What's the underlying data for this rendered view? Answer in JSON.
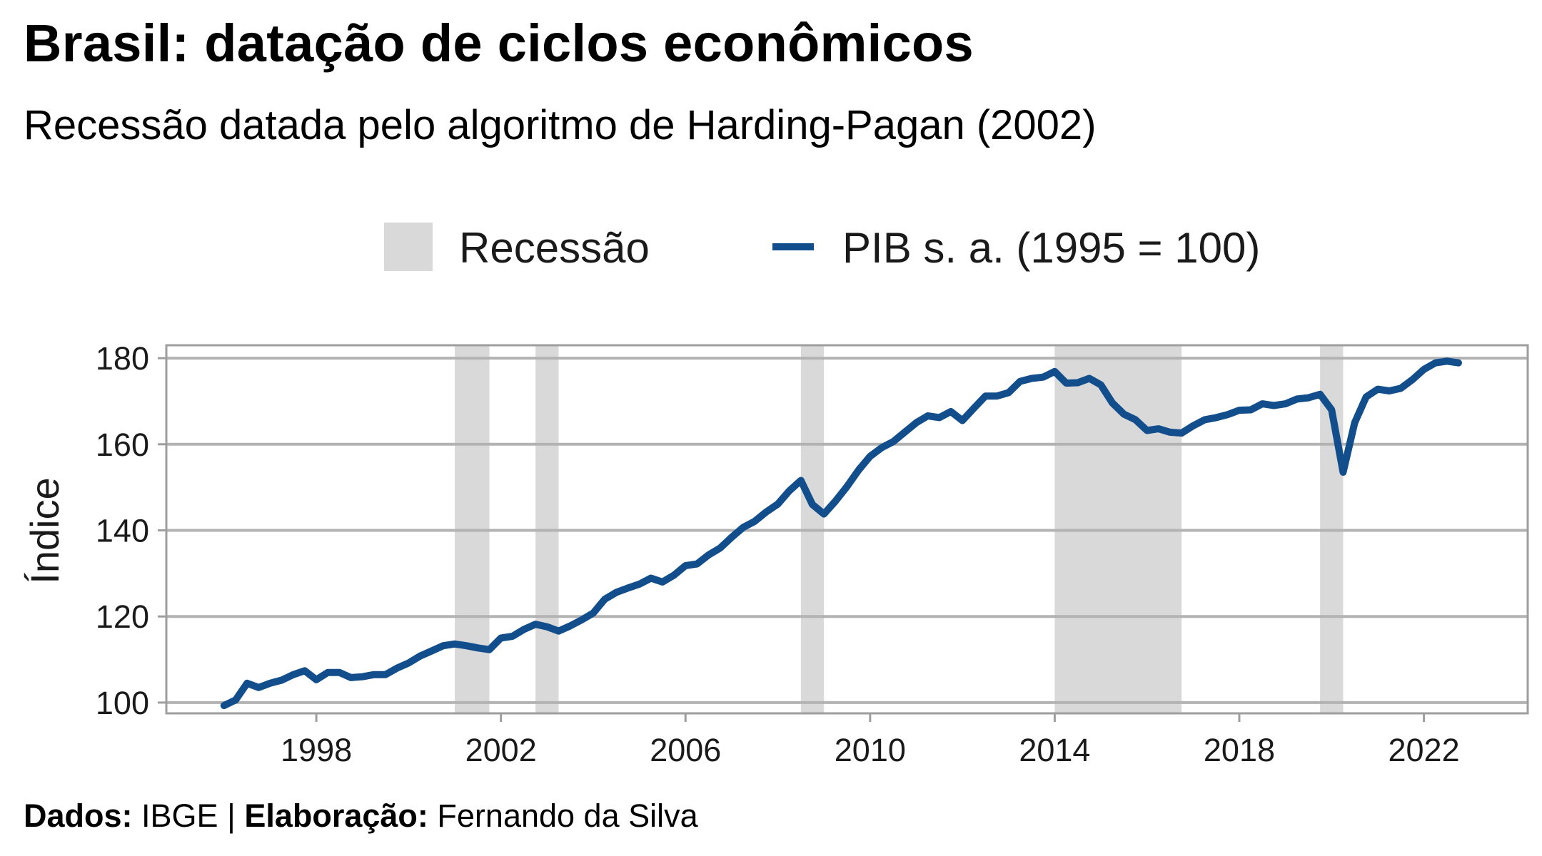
{
  "title": "Brasil: datação de ciclos econômicos",
  "subtitle": "Recessão datada pelo algoritmo de Harding-Pagan (2002)",
  "caption": {
    "dados_label": "Dados:",
    "dados_value": "IBGE",
    "separator": "|",
    "elaboracao_label": "Elaboração:",
    "elaboracao_value": "Fernando da Silva"
  },
  "colors": {
    "line": "#124e8c",
    "recession": "#d9d9d9",
    "grid": "#b3b3b3",
    "axis": "#9e9e9e"
  },
  "chart_data": {
    "type": "line",
    "title": "Brasil: datação de ciclos econômicos",
    "subtitle": "Recessão datada pelo algoritmo de Harding-Pagan (2002)",
    "xlabel": "",
    "ylabel": "Índice",
    "xlim": [
      1994.75,
      2024.25
    ],
    "ylim": [
      97.5,
      183
    ],
    "x_ticks": [
      1998,
      2002,
      2006,
      2010,
      2014,
      2018,
      2022
    ],
    "y_ticks": [
      100,
      120,
      140,
      160,
      180
    ],
    "grid": "horizontal",
    "legend_position": "top",
    "legend": [
      {
        "label": "Recessão",
        "kind": "area"
      },
      {
        "label": "PIB s. a. (1995 = 100)",
        "kind": "line"
      }
    ],
    "recessions": [
      {
        "start": 2001.0,
        "end": 2001.75
      },
      {
        "start": 2002.75,
        "end": 2003.25
      },
      {
        "start": 2008.5,
        "end": 2009.0
      },
      {
        "start": 2014.0,
        "end": 2016.75
      },
      {
        "start": 2019.75,
        "end": 2020.25
      }
    ],
    "series": [
      {
        "name": "PIB s. a. (1995 = 100)",
        "x": [
          1996.0,
          1996.25,
          1996.5,
          1996.75,
          1997.0,
          1997.25,
          1997.5,
          1997.75,
          1998.0,
          1998.25,
          1998.5,
          1998.75,
          1999.0,
          1999.25,
          1999.5,
          1999.75,
          2000.0,
          2000.25,
          2000.5,
          2000.75,
          2001.0,
          2001.25,
          2001.5,
          2001.75,
          2002.0,
          2002.25,
          2002.5,
          2002.75,
          2003.0,
          2003.25,
          2003.5,
          2003.75,
          2004.0,
          2004.25,
          2004.5,
          2004.75,
          2005.0,
          2005.25,
          2005.5,
          2005.75,
          2006.0,
          2006.25,
          2006.5,
          2006.75,
          2007.0,
          2007.25,
          2007.5,
          2007.75,
          2008.0,
          2008.25,
          2008.5,
          2008.75,
          2009.0,
          2009.25,
          2009.5,
          2009.75,
          2010.0,
          2010.25,
          2010.5,
          2010.75,
          2011.0,
          2011.25,
          2011.5,
          2011.75,
          2012.0,
          2012.25,
          2012.5,
          2012.75,
          2013.0,
          2013.25,
          2013.5,
          2013.75,
          2014.0,
          2014.25,
          2014.5,
          2014.75,
          2015.0,
          2015.25,
          2015.5,
          2015.75,
          2016.0,
          2016.25,
          2016.5,
          2016.75,
          2017.0,
          2017.25,
          2017.5,
          2017.75,
          2018.0,
          2018.25,
          2018.5,
          2018.75,
          2019.0,
          2019.25,
          2019.5,
          2019.75,
          2020.0,
          2020.25,
          2020.5,
          2020.75,
          2021.0,
          2021.25,
          2021.5,
          2021.75,
          2022.0,
          2022.25,
          2022.5,
          2022.75
        ],
        "values": [
          99.3,
          100.6,
          104.5,
          103.5,
          104.5,
          105.2,
          106.5,
          107.4,
          105.3,
          107.0,
          107.0,
          105.8,
          106.0,
          106.5,
          106.5,
          108.0,
          109.2,
          110.8,
          112.0,
          113.2,
          113.6,
          113.2,
          112.7,
          112.3,
          115.0,
          115.4,
          117.0,
          118.2,
          117.6,
          116.6,
          117.8,
          119.2,
          120.8,
          124.0,
          125.6,
          126.6,
          127.5,
          128.9,
          128.0,
          129.6,
          131.8,
          132.2,
          134.3,
          135.9,
          138.4,
          140.7,
          142.1,
          144.3,
          146.1,
          149.2,
          151.6,
          146.0,
          143.8,
          146.8,
          150.2,
          154.0,
          157.2,
          159.2,
          160.6,
          162.8,
          165.0,
          166.6,
          166.2,
          167.6,
          165.5,
          168.4,
          171.2,
          171.2,
          172.0,
          174.6,
          175.3,
          175.6,
          176.9,
          174.2,
          174.3,
          175.3,
          173.8,
          169.6,
          167.0,
          165.7,
          163.2,
          163.6,
          162.8,
          162.6,
          164.3,
          165.7,
          166.2,
          166.9,
          167.9,
          168.0,
          169.4,
          169.0,
          169.4,
          170.5,
          170.8,
          171.6,
          168.0,
          153.5,
          165.0,
          171.0,
          172.8,
          172.4,
          173.0,
          175.0,
          177.4,
          178.9,
          179.3,
          178.9
        ]
      }
    ]
  }
}
